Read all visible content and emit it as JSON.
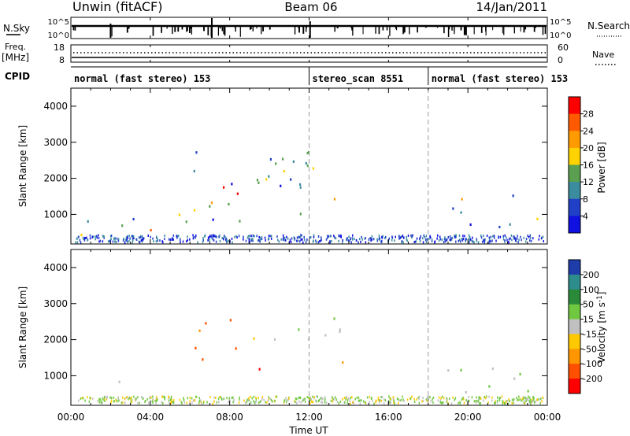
{
  "header": {
    "station": "Unwin (fitACF)",
    "beam": "Beam 06",
    "date": "14/Jan/2011"
  },
  "summary_panels": {
    "nsky_label": "N.Sky",
    "nsky_ticks": [
      "10^5",
      "10^0"
    ],
    "nsearch_label": "N.Search",
    "nsearch_ticks": [
      "10^5",
      "10^0"
    ],
    "freq_label": "Freq.",
    "freq_unit": "[MHz]",
    "freq_ticks": [
      "18",
      "8"
    ],
    "nave_label": "Nave",
    "nave_ticks": [
      "60",
      "0"
    ],
    "cpid_label": "CPID"
  },
  "cpid_segments": [
    {
      "label": "normal (fast stereo) 153",
      "start_hour": 0,
      "end_hour": 12
    },
    {
      "label": "stereo_scan 8551",
      "start_hour": 12,
      "end_hour": 18
    },
    {
      "label": "normal (fast stereo) 153",
      "start_hour": 18,
      "end_hour": 24
    }
  ],
  "x_axis": {
    "label": "Time UT",
    "ticks": [
      "00:00",
      "04:00",
      "08:00",
      "12:00",
      "16:00",
      "20:00",
      "00:00"
    ],
    "range_hours": [
      0,
      24
    ]
  },
  "chart_data": [
    {
      "type": "heatmap",
      "quantity": "power",
      "ylabel": "Slant Range [km]",
      "ylim": [
        180,
        4500
      ],
      "yticks": [
        1000,
        2000,
        3000,
        4000
      ],
      "colorbar_label": "Power [dB]",
      "colorbar_ticks": [
        "28",
        "24",
        "20",
        "16",
        "12",
        "8",
        "4"
      ],
      "colorbar_colors": [
        "#ff0000",
        "#ff5a00",
        "#ff9a00",
        "#ffd200",
        "#5aa050",
        "#3c8ca0",
        "#2040c8",
        "#1010e0"
      ],
      "regions": [
        {
          "t0": 0.3,
          "t1": 4.8,
          "r0": 230,
          "r1": 900,
          "level": 0.35
        },
        {
          "t0": 2.9,
          "t1": 4.6,
          "r0": 250,
          "r1": 700,
          "level": 0.85
        },
        {
          "t0": 0.4,
          "t1": 2.0,
          "r0": 400,
          "r1": 800,
          "level": 0.75
        },
        {
          "t0": 5.4,
          "t1": 12.0,
          "r0": 700,
          "r1": 3200,
          "level": 0.3
        },
        {
          "t0": 6.0,
          "t1": 10.0,
          "r0": 1200,
          "r1": 1800,
          "level": 0.9
        },
        {
          "t0": 9.0,
          "t1": 13.5,
          "r0": 1700,
          "r1": 2500,
          "level": 0.6
        },
        {
          "t0": 11.5,
          "t1": 14.0,
          "r0": 900,
          "r1": 1500,
          "level": 0.6
        },
        {
          "t0": 18.3,
          "t1": 22.5,
          "r0": 600,
          "r1": 1700,
          "level": 0.35
        },
        {
          "t0": 19.5,
          "t1": 22.0,
          "r0": 1300,
          "r1": 1700,
          "level": 0.5
        },
        {
          "t0": 21.5,
          "t1": 24.0,
          "r0": 700,
          "r1": 1100,
          "level": 0.3
        }
      ]
    },
    {
      "type": "heatmap",
      "quantity": "velocity",
      "ylabel": "Slant Range [km]",
      "ylim": [
        180,
        4500
      ],
      "yticks": [
        1000,
        2000,
        3000,
        4000
      ],
      "colorbar_label": "Velocity [m s",
      "colorbar_label_sup": "-1",
      "colorbar_label_end": "]",
      "colorbar_ticks": [
        "200",
        "100",
        "50",
        "15",
        "-15",
        "-50",
        "-100",
        "-200"
      ],
      "colorbar_colors": [
        "#1e3caa",
        "#2d8c8c",
        "#2a8a3a",
        "#70c840",
        "#c0c0c0",
        "#ffc800",
        "#ff9600",
        "#ff5000",
        "#ff0000"
      ],
      "regions": [
        {
          "t0": 0.3,
          "t1": 5.0,
          "r0": 230,
          "r1": 800,
          "level": 0.5
        },
        {
          "t0": 6.0,
          "t1": 9.5,
          "r0": 1000,
          "r1": 2600,
          "level": 0.9
        },
        {
          "t0": 9.5,
          "t1": 14.0,
          "r0": 1400,
          "r1": 2600,
          "level": 0.45
        },
        {
          "t0": 12.0,
          "t1": 14.0,
          "r0": 900,
          "r1": 1400,
          "level": 0.85
        },
        {
          "t0": 18.3,
          "t1": 23.5,
          "r0": 400,
          "r1": 1600,
          "level": 0.45
        }
      ]
    }
  ]
}
